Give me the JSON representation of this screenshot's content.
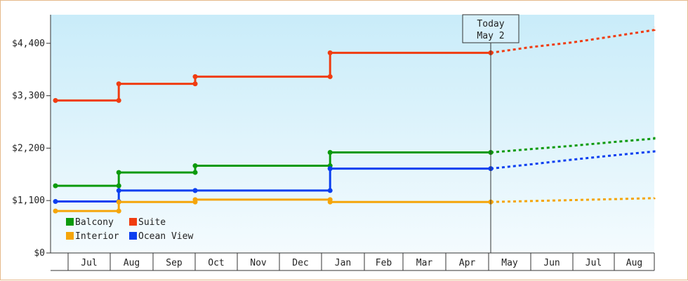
{
  "chart_data": {
    "type": "line",
    "title": "",
    "xlabel": "",
    "ylabel": "",
    "ylim": [
      0,
      5000
    ],
    "y_ticks": [
      {
        "value": 0,
        "label": "$0"
      },
      {
        "value": 1100,
        "label": "$1,100"
      },
      {
        "value": 2200,
        "label": "$2,200"
      },
      {
        "value": 3300,
        "label": "$3,300"
      },
      {
        "value": 4400,
        "label": "$4,400"
      }
    ],
    "x_axis_months": [
      "Jul",
      "Aug",
      "Sep",
      "Oct",
      "Nov",
      "Dec",
      "Jan",
      "Feb",
      "Mar",
      "Apr",
      "May",
      "Jun",
      "Jul",
      "Aug"
    ],
    "today_marker": {
      "line1": "Today",
      "line2": "May 2",
      "x": 10.05
    },
    "series": [
      {
        "name": "Suite",
        "color": "#f03c10",
        "history": [
          [
            -0.3,
            3200
          ],
          [
            1.2,
            3200
          ],
          [
            1.2,
            3550
          ],
          [
            3.0,
            3550
          ],
          [
            3.0,
            3700
          ],
          [
            6.2,
            3700
          ],
          [
            6.2,
            4200
          ],
          [
            10.05,
            4200
          ]
        ],
        "forecast": [
          [
            10.05,
            4200
          ],
          [
            11.0,
            4320
          ],
          [
            12.0,
            4420
          ],
          [
            13.0,
            4550
          ],
          [
            14.0,
            4680
          ],
          [
            14.5,
            4750
          ]
        ]
      },
      {
        "name": "Balcony",
        "color": "#0c9a0c",
        "history": [
          [
            -0.3,
            1410
          ],
          [
            1.2,
            1410
          ],
          [
            1.2,
            1690
          ],
          [
            3.0,
            1690
          ],
          [
            3.0,
            1830
          ],
          [
            6.2,
            1830
          ],
          [
            6.2,
            2110
          ],
          [
            10.05,
            2110
          ]
        ],
        "forecast": [
          [
            10.05,
            2110
          ],
          [
            11.0,
            2180
          ],
          [
            12.0,
            2250
          ],
          [
            13.0,
            2330
          ],
          [
            14.0,
            2400
          ],
          [
            14.5,
            2440
          ]
        ]
      },
      {
        "name": "Ocean View",
        "color": "#0b3ff0",
        "history": [
          [
            -0.3,
            1080
          ],
          [
            1.2,
            1080
          ],
          [
            1.2,
            1310
          ],
          [
            3.0,
            1310
          ],
          [
            3.0,
            1310
          ],
          [
            6.2,
            1310
          ],
          [
            6.2,
            1770
          ],
          [
            10.05,
            1770
          ]
        ],
        "forecast": [
          [
            10.05,
            1770
          ],
          [
            11.0,
            1860
          ],
          [
            12.0,
            1960
          ],
          [
            13.0,
            2050
          ],
          [
            14.0,
            2130
          ],
          [
            14.5,
            2170
          ]
        ]
      },
      {
        "name": "Interior",
        "color": "#f5a50a",
        "history": [
          [
            -0.3,
            880
          ],
          [
            1.2,
            880
          ],
          [
            1.2,
            1070
          ],
          [
            3.0,
            1070
          ],
          [
            3.0,
            1120
          ],
          [
            6.2,
            1120
          ],
          [
            6.2,
            1070
          ],
          [
            10.05,
            1070
          ]
        ],
        "forecast": [
          [
            10.05,
            1070
          ],
          [
            11.0,
            1090
          ],
          [
            12.0,
            1110
          ],
          [
            13.0,
            1130
          ],
          [
            14.0,
            1150
          ],
          [
            14.5,
            1160
          ]
        ]
      }
    ],
    "legend": [
      {
        "name": "Balcony",
        "color": "#0c9a0c"
      },
      {
        "name": "Suite",
        "color": "#f03c10"
      },
      {
        "name": "Interior",
        "color": "#f5a50a"
      },
      {
        "name": "Ocean View",
        "color": "#0b3ff0"
      }
    ],
    "legend_position": "bottom-left",
    "grid": false
  }
}
